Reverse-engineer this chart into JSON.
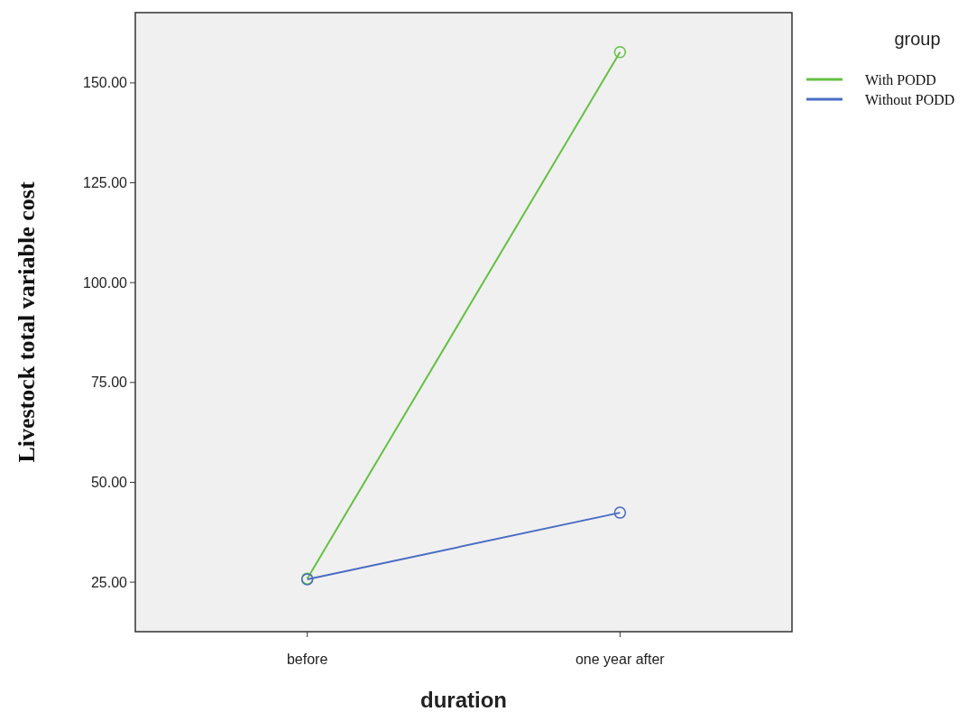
{
  "chart_data": {
    "type": "line",
    "xlabel": "duration",
    "ylabel": "Livestock total variable cost",
    "legend_title": "group",
    "categories": [
      "before",
      "one year after"
    ],
    "series": [
      {
        "name": "With PODD",
        "color": "#64c043",
        "values": [
          25.9,
          157.7
        ]
      },
      {
        "name": "Without PODD",
        "color": "#4a6cc4",
        "values": [
          25.7,
          42.4
        ]
      }
    ],
    "ylim": [
      12.6,
      167.6
    ],
    "yticks": [
      {
        "value": 25,
        "label": "25.00"
      },
      {
        "value": 50,
        "label": "50.00"
      },
      {
        "value": 75,
        "label": "75.00"
      },
      {
        "value": 100,
        "label": "100.00"
      },
      {
        "value": 125,
        "label": "125.00"
      },
      {
        "value": 150,
        "label": "150.00"
      }
    ],
    "grid": false,
    "legend": "top right",
    "marker": "circle",
    "line_style": "solid"
  }
}
